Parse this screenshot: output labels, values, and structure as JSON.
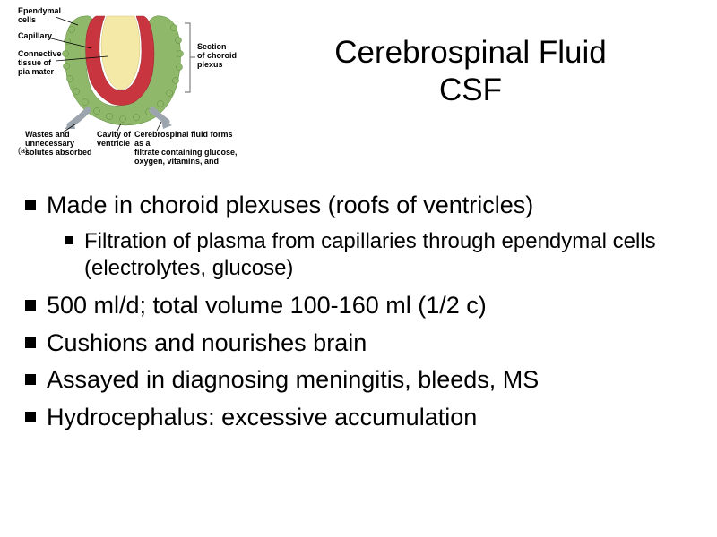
{
  "title": {
    "line1": "Cerebrospinal Fluid",
    "line2": "CSF"
  },
  "bullets": [
    {
      "text": "Made in choroid plexuses (roofs of ventricles)",
      "sub": [
        "Filtration of plasma from capillaries through ependymal cells (electrolytes, glucose)"
      ]
    },
    {
      "text": "500 ml/d; total volume 100-160 ml (1/2 c)"
    },
    {
      "text": "Cushions and nourishes brain"
    },
    {
      "text": "Assayed in diagnosing meningitis, bleeds, MS"
    },
    {
      "text": "Hydrocephalus: excessive accumulation"
    }
  ],
  "diagram": {
    "labels": {
      "ependymal": "Ependymal\ncells",
      "capillary": "Capillary",
      "connective": "Connective\ntissue of\npia mater",
      "section": "Section\nof choroid\nplexus",
      "wastes": "Wastes and\nunnecessary\nsolutes absorbed",
      "cavity": "Cavity of\nventricle",
      "csf_forms": "Cerebrospinal fluid forms as a\nfiltrate containing glucose,\noxygen, vitamins, and",
      "panel": "(a)"
    },
    "colors": {
      "ependymal_green": "#8fb86b",
      "ependymal_border": "#5a8a3a",
      "capillary_red": "#c8353f",
      "capillary_dark": "#9b2830",
      "inner_yellow": "#f5e9a8",
      "arrow_gray": "#9ca5ad",
      "bracket_gray": "#808080"
    }
  },
  "style": {
    "title_fontsize": 35,
    "bullet_fontsize": 27,
    "sub_bullet_fontsize": 24,
    "label_fontsize": 9,
    "text_color": "#000000",
    "background": "#ffffff"
  }
}
